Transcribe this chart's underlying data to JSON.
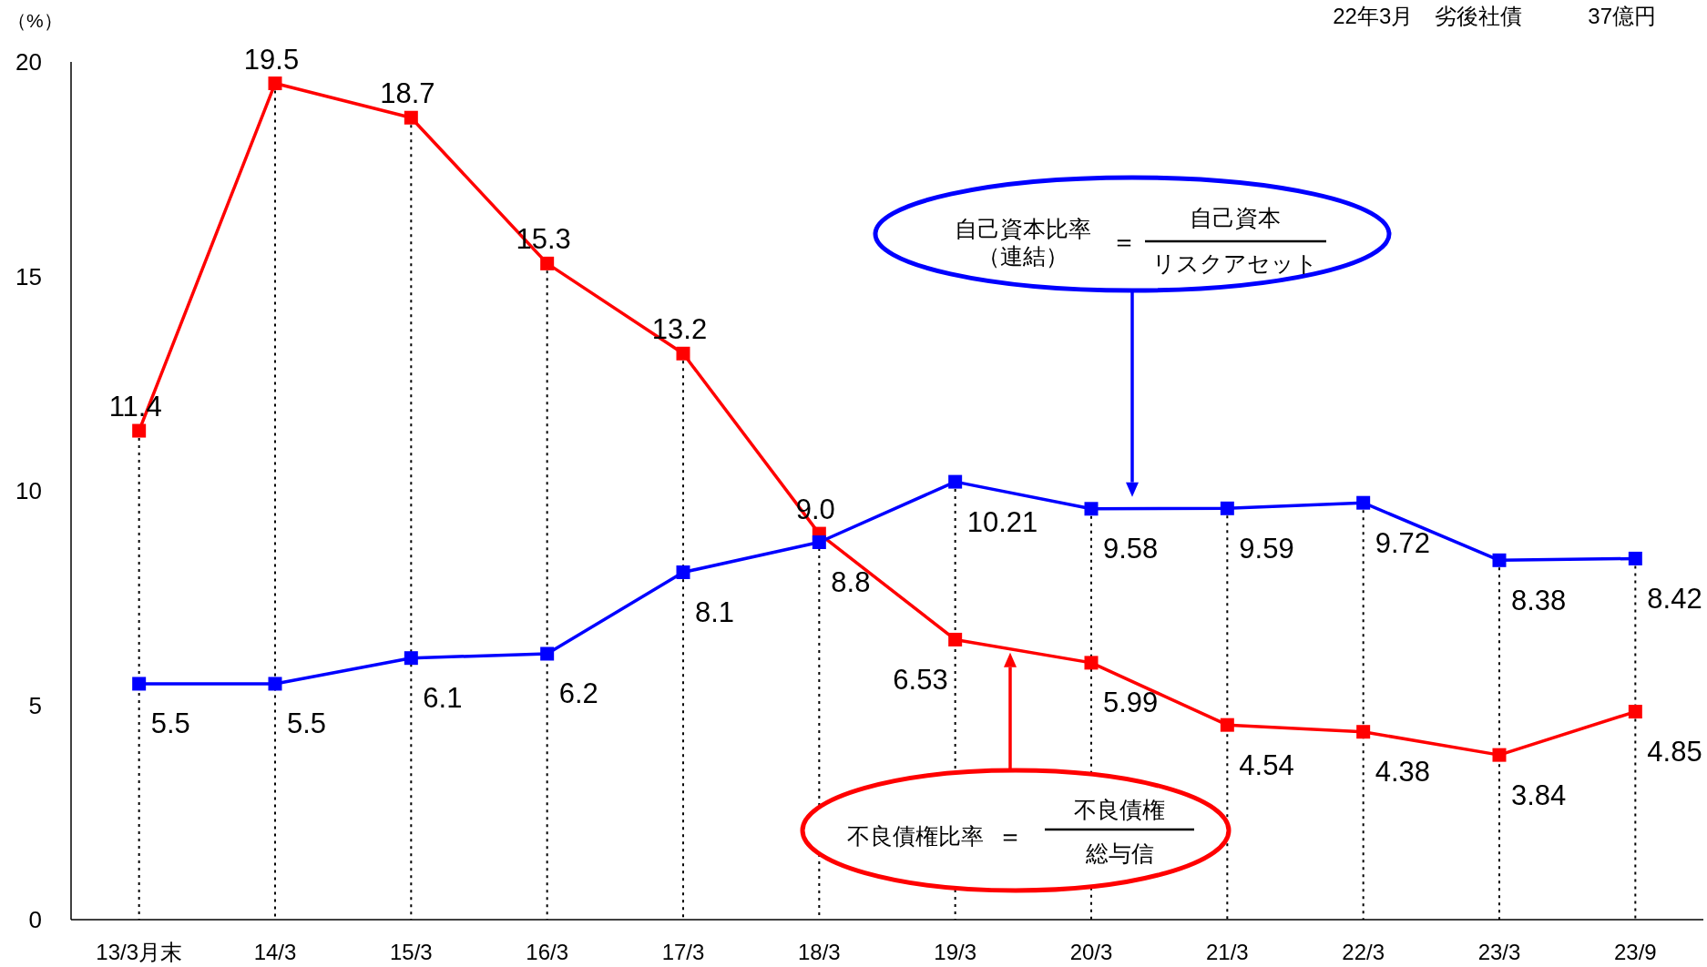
{
  "chart_data": {
    "type": "line",
    "ylabel": "（%）",
    "categories": [
      "13/3月末",
      "14/3",
      "15/3",
      "16/3",
      "17/3",
      "18/3",
      "19/3",
      "20/3",
      "21/3",
      "22/3",
      "23/3",
      "23/9"
    ],
    "series": [
      {
        "color": "#ff0000",
        "values": [
          11.4,
          19.5,
          18.7,
          15.3,
          13.2,
          9.0,
          6.53,
          5.99,
          4.54,
          4.38,
          3.84,
          4.85
        ],
        "value_labels": [
          "11.4",
          "19.5",
          "18.7",
          "15.3",
          "13.2",
          "9.0",
          "6.53",
          "5.99",
          "4.54",
          "4.38",
          "3.84",
          "4.85"
        ]
      },
      {
        "color": "#0000ff",
        "values": [
          5.5,
          5.5,
          6.1,
          6.2,
          8.1,
          8.8,
          10.21,
          9.58,
          9.59,
          9.72,
          8.38,
          8.42
        ],
        "value_labels": [
          "5.5",
          "5.5",
          "6.1",
          "6.2",
          "8.1",
          "8.8",
          "10.21",
          "9.58",
          "9.59",
          "9.72",
          "8.38",
          "8.42"
        ]
      }
    ],
    "ylim": [
      0,
      20
    ],
    "yticks": [
      0,
      5,
      10,
      15,
      20
    ],
    "grid": "x",
    "marker": "square",
    "line_style": "solid",
    "annotations": [
      "22年3月　劣後社債　　　37億円",
      "不良債権比率",
      "＝",
      "不良債権",
      "総与信",
      "自己資本比率（連結）",
      "＝",
      "自己資本",
      "リスクアセット"
    ]
  }
}
